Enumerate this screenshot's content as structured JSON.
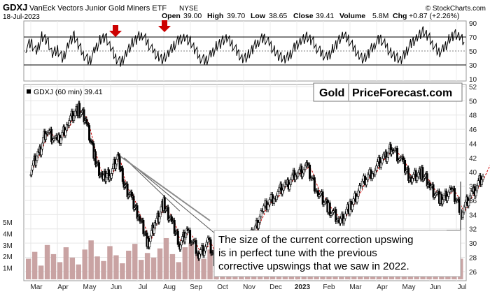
{
  "header": {
    "symbol": "GDXJ",
    "name": "VanEck Vectors Junior Gold Miners ETF",
    "exchange": "NYSE",
    "date": "18-Jul-2023",
    "open_label": "Open",
    "open": "39.00",
    "high_label": "High",
    "high": "39.70",
    "low_label": "Low",
    "low": "38.65",
    "close_label": "Close",
    "close": "39.41",
    "volume_label": "Volume",
    "volume": "5.8M",
    "chg_label": "Chg",
    "chg": "+0.87 (+2.26%)",
    "copyright": "© StockCharts.com"
  },
  "logo": {
    "gold": "Gold",
    "rest": "PriceForecast.com"
  },
  "annotation": "The size of the current correction upswing is in perfect tune with the previous corrective upswings that we saw in 2022.",
  "annotation_lines": [
    "The size of the current correction upswing",
    "is in perfect tune with the previous",
    "corrective upswings that we saw in 2022."
  ],
  "colors": {
    "price": "#000000",
    "ma": "#cc0000",
    "volume": "#c9a3a3",
    "volume_line": "#b03030",
    "arrow": "#cc0000",
    "logo_gold": "#e8a200",
    "annotation_line": "#8c8c8c"
  },
  "chart_data": [
    {
      "type": "line",
      "panel": "RSI",
      "ylim": [
        10,
        90
      ],
      "yticks": [
        "90",
        "70",
        "50",
        "30",
        "10"
      ],
      "reference_lines": [
        70,
        50,
        30
      ],
      "markers": [
        {
          "label": "sell-signal-arrow",
          "month": "Jun"
        },
        {
          "label": "sell-signal-arrow",
          "month": "Aug"
        }
      ],
      "values": [
        55,
        62,
        48,
        70,
        66,
        45,
        52,
        38,
        60,
        72,
        58,
        44,
        35,
        50,
        65,
        71,
        55,
        40,
        33,
        48,
        60,
        68,
        74,
        62,
        50,
        42,
        38,
        46,
        58,
        66,
        70,
        64,
        52,
        40,
        36,
        44,
        56,
        63,
        68,
        60,
        48,
        39,
        43,
        55,
        64,
        69,
        61,
        50,
        42,
        37,
        45,
        57,
        65,
        70,
        66,
        55,
        46,
        40,
        52,
        63,
        72,
        67,
        54,
        44,
        38,
        49,
        60,
        68,
        58,
        47,
        41,
        36,
        50,
        62,
        70,
        78,
        72,
        60,
        48,
        52,
        66,
        74,
        70,
        62
      ]
    },
    {
      "type": "line",
      "panel": "price",
      "title": "GDXJ (60 min) 39.41",
      "xlabel": "",
      "ylabel": "",
      "ylim": [
        25,
        52
      ],
      "yticks": [
        "52",
        "50",
        "48",
        "46",
        "44",
        "42",
        "40",
        "38",
        "36",
        "34",
        "32",
        "30",
        "28",
        "26"
      ],
      "x": [
        "Mar",
        "Apr",
        "May",
        "Jun",
        "Jul",
        "Aug",
        "Sep",
        "Oct",
        "Nov",
        "Dec",
        "2023",
        "Feb",
        "Mar",
        "Apr",
        "May",
        "Jun",
        "Jul"
      ],
      "series": [
        {
          "name": "GDXJ",
          "points": [
            [
              0,
              40.5
            ],
            [
              0.3,
              42.5
            ],
            [
              0.6,
              46
            ],
            [
              1.0,
              44
            ],
            [
              1.4,
              47
            ],
            [
              1.8,
              49
            ],
            [
              2.1,
              47
            ],
            [
              2.4,
              42
            ],
            [
              2.7,
              39
            ],
            [
              3.0,
              40
            ],
            [
              3.3,
              42
            ],
            [
              3.5,
              38.5
            ],
            [
              3.8,
              36
            ],
            [
              4.1,
              33.5
            ],
            [
              4.4,
              30
            ],
            [
              4.7,
              33
            ],
            [
              5.0,
              35.5
            ],
            [
              5.3,
              33
            ],
            [
              5.6,
              30
            ],
            [
              5.9,
              31.5
            ],
            [
              6.3,
              28.5
            ],
            [
              6.7,
              30
            ],
            [
              7.0,
              26.5
            ],
            [
              7.4,
              30.5
            ],
            [
              7.8,
              29
            ],
            [
              8.3,
              31
            ],
            [
              8.7,
              34.5
            ],
            [
              9.2,
              37
            ],
            [
              9.6,
              38
            ],
            [
              10.0,
              40
            ],
            [
              10.4,
              40.5
            ],
            [
              10.8,
              37
            ],
            [
              11.2,
              35
            ],
            [
              11.6,
              33
            ],
            [
              12.0,
              35
            ],
            [
              12.4,
              38
            ],
            [
              12.9,
              40.5
            ],
            [
              13.3,
              42
            ],
            [
              13.6,
              43.5
            ],
            [
              14.0,
              41
            ],
            [
              14.3,
              39
            ],
            [
              14.7,
              40
            ],
            [
              15.0,
              38
            ],
            [
              15.4,
              36
            ],
            [
              15.8,
              37.5
            ],
            [
              16.2,
              34.5
            ],
            [
              16.6,
              37
            ],
            [
              17.0,
              39.4
            ]
          ]
        }
      ],
      "trend_lines": [
        {
          "from": [
            3.5,
            42
          ],
          "to": [
            7.2,
            30.5
          ]
        },
        {
          "from": [
            3.5,
            42
          ],
          "to": [
            5.6,
            34.5
          ]
        }
      ]
    },
    {
      "type": "bar",
      "panel": "volume",
      "ylim": [
        0,
        5
      ],
      "yticks": [
        "5M",
        "4M",
        "3M",
        "2M",
        "1M"
      ],
      "values": [
        1.8,
        2.4,
        1.2,
        3.0,
        2.2,
        1.5,
        2.8,
        1.9,
        1.3,
        2.6,
        3.4,
        2.0,
        1.6,
        2.9,
        2.1,
        1.4,
        2.5,
        3.1,
        1.7,
        2.3,
        1.9,
        2.7,
        3.6,
        2.2,
        1.5,
        2.8,
        3.2,
        2.4,
        1.8,
        2.6,
        3.9,
        3.0,
        2.1,
        1.6,
        2.9,
        3.4,
        2.5,
        1.9,
        2.2,
        2.8,
        1.7,
        2.4,
        3.0,
        2.0,
        1.5,
        2.6,
        2.2,
        1.8,
        2.9,
        2.3,
        1.6,
        2.1,
        2.7,
        1.9,
        2.4,
        1.8,
        2.2,
        2.6,
        2.0,
        1.7,
        2.3,
        2.8,
        1.9,
        2.5,
        2.1,
        1.6,
        2.4,
        2.9,
        2.2,
        1.8
      ]
    }
  ]
}
